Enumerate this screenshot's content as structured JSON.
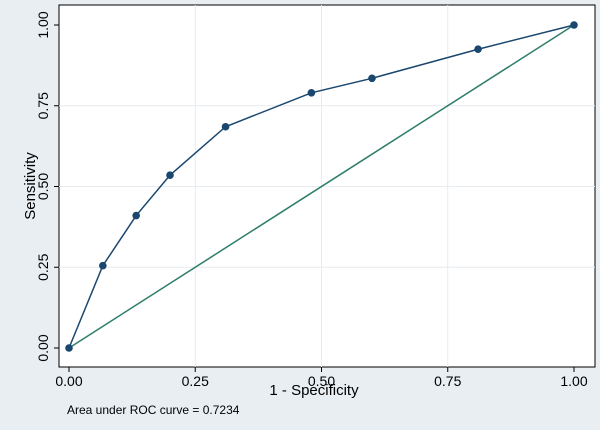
{
  "chart_data": {
    "type": "line",
    "xlabel": "1 - Specificity",
    "ylabel": "Sensitivity",
    "xlim": [
      0,
      1
    ],
    "ylim": [
      0,
      1
    ],
    "x_ticks": [
      "0.00",
      "0.25",
      "0.50",
      "0.75",
      "1.00"
    ],
    "y_ticks": [
      "0.00",
      "0.25",
      "0.50",
      "0.75",
      "1.00"
    ],
    "grid": true,
    "series": [
      {
        "color": "#1a476f",
        "markers": true,
        "x": [
          0.0,
          0.067,
          0.133,
          0.2,
          0.31,
          0.48,
          0.6,
          0.81,
          1.0
        ],
        "y": [
          0.0,
          0.255,
          0.41,
          0.535,
          0.685,
          0.79,
          0.835,
          0.925,
          1.0
        ]
      },
      {
        "color": "#2e7d6b",
        "markers": false,
        "x": [
          0.0,
          1.0
        ],
        "y": [
          0.0,
          1.0
        ]
      }
    ],
    "annotation": "Area under ROC curve = 0.7234"
  },
  "colors": {
    "background": "#e8eef2",
    "plot_background": "#ffffff",
    "grid": "#e6ecef"
  }
}
